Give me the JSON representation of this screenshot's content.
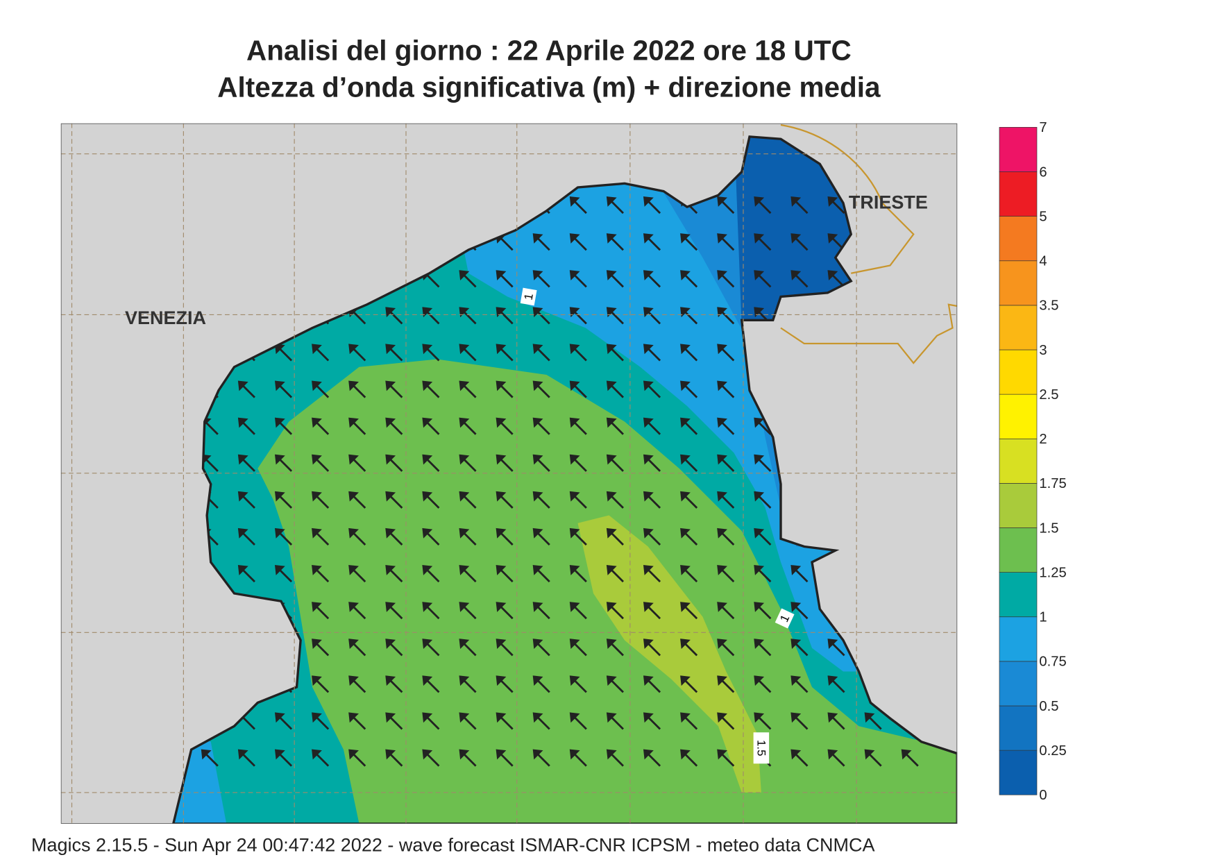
{
  "header": {
    "title_lines": [
      "Analisi del giorno :  22   Aprile  2022   ore 18 UTC",
      "Altezza d’onda significativa (m) + direzione media"
    ]
  },
  "map": {
    "places": [
      "VENEZIA",
      "TRIESTE"
    ],
    "contour_labels": [
      "1",
      "1",
      "1.5"
    ]
  },
  "legend": {
    "ticks": [
      "0",
      "0.25",
      "0.5",
      "0.75",
      "1",
      "1.25",
      "1.5",
      "1.75",
      "2",
      "2.5",
      "3",
      "3.5",
      "4",
      "5",
      "6",
      "7"
    ],
    "colors": [
      "#0b5fae",
      "#1274c1",
      "#1a8ad5",
      "#1ca2e2",
      "#00aaa4",
      "#6dbf4f",
      "#a9cb3b",
      "#d8e022",
      "#fff200",
      "#ffd900",
      "#fbb714",
      "#f7941d",
      "#f47a20",
      "#ed1c24",
      "#ee1466"
    ]
  },
  "footer": "Magics 2.15.5 - Sun Apr 24 00:47:42 2022 - wave forecast  ISMAR-CNR  ICPSM - meteo data   CNMCA"
}
